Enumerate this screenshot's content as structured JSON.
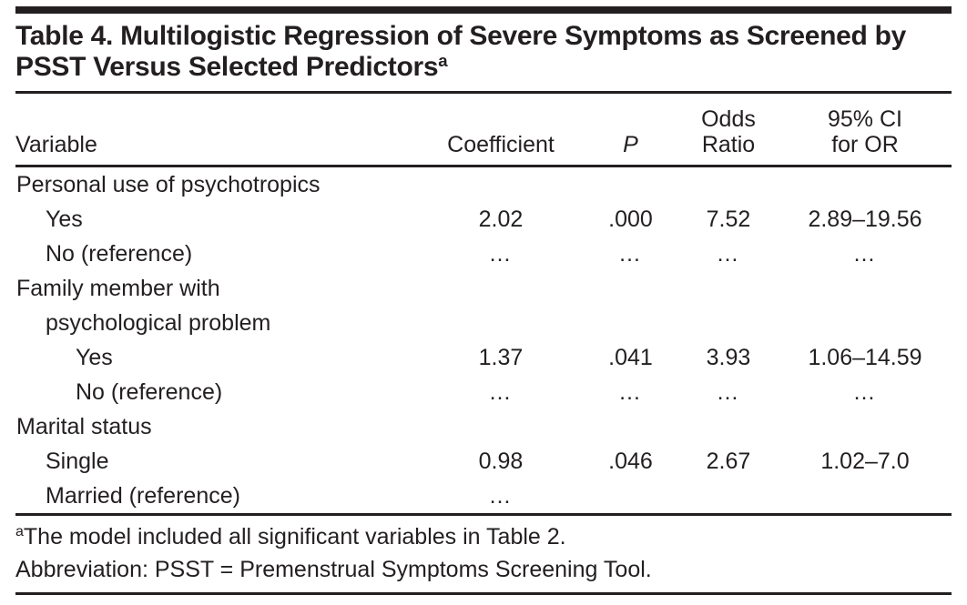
{
  "title": {
    "text": "Table 4. Multilogistic Regression of Severe Symptoms as Screened by PSST Versus Selected Predictors",
    "superscript": "a"
  },
  "table": {
    "header": {
      "variable": "Variable",
      "coefficient": "Coefficient",
      "p": "P",
      "odds_ratio_line1": "Odds",
      "odds_ratio_line2": "Ratio",
      "ci_line1": "95% CI",
      "ci_line2": "for OR"
    },
    "rows": [
      {
        "label": "Personal use of psychotropics",
        "indent": 0,
        "coefficient": "",
        "p": "",
        "odds_ratio": "",
        "ci": ""
      },
      {
        "label": "Yes",
        "indent": 1,
        "coefficient": "2.02",
        "p": ".000",
        "odds_ratio": "7.52",
        "ci": "2.89–19.56"
      },
      {
        "label": "No (reference)",
        "indent": 1,
        "coefficient": "…",
        "p": "…",
        "odds_ratio": "…",
        "ci": "…"
      },
      {
        "label": "Family member with",
        "indent": 0,
        "coefficient": "",
        "p": "",
        "odds_ratio": "",
        "ci": ""
      },
      {
        "label": "psychological problem",
        "indent": 1,
        "coefficient": "",
        "p": "",
        "odds_ratio": "",
        "ci": ""
      },
      {
        "label": "Yes",
        "indent": 2,
        "coefficient": "1.37",
        "p": ".041",
        "odds_ratio": "3.93",
        "ci": "1.06–14.59"
      },
      {
        "label": "No (reference)",
        "indent": 2,
        "coefficient": "…",
        "p": "…",
        "odds_ratio": "…",
        "ci": "…"
      },
      {
        "label": "Marital status",
        "indent": 0,
        "coefficient": "",
        "p": "",
        "odds_ratio": "",
        "ci": ""
      },
      {
        "label": "Single",
        "indent": 1,
        "coefficient": "0.98",
        "p": ".046",
        "odds_ratio": "2.67",
        "ci": "1.02–7.0"
      },
      {
        "label": "Married (reference)",
        "indent": 1,
        "coefficient": "…",
        "p": "",
        "odds_ratio": "",
        "ci": ""
      }
    ]
  },
  "footnotes": [
    {
      "marker": "a",
      "text": "The model included all significant variables in Table 2."
    },
    {
      "marker": "",
      "text": "Abbreviation: PSST = Premenstrual Symptoms Screening Tool."
    }
  ],
  "colors": {
    "text": "#231f20",
    "rule": "#231f20",
    "background": "#ffffff"
  }
}
